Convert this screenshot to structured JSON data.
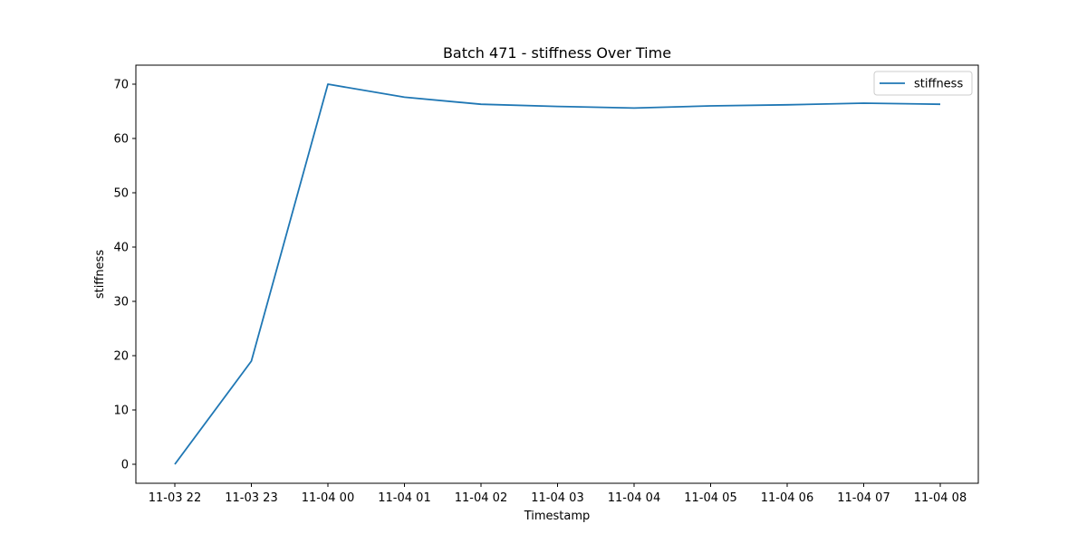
{
  "chart_data": {
    "type": "line",
    "title": "Batch 471 - stiffness Over Time",
    "xlabel": "Timestamp",
    "ylabel": "stiffness",
    "x": [
      "11-03 22",
      "11-03 23",
      "11-04 00",
      "11-04 01",
      "11-04 02",
      "11-04 03",
      "11-04 04",
      "11-04 05",
      "11-04 06",
      "11-04 07",
      "11-04 08"
    ],
    "series": [
      {
        "name": "stiffness",
        "color": "#1f77b4",
        "values": [
          0,
          19,
          70,
          67.6,
          66.3,
          65.9,
          65.6,
          66.0,
          66.2,
          66.5,
          66.3
        ]
      }
    ],
    "ylim": [
      -3.5,
      73.5
    ],
    "yticks": [
      0,
      10,
      20,
      30,
      40,
      50,
      60,
      70
    ],
    "grid": false,
    "legend_position": "top-right"
  }
}
